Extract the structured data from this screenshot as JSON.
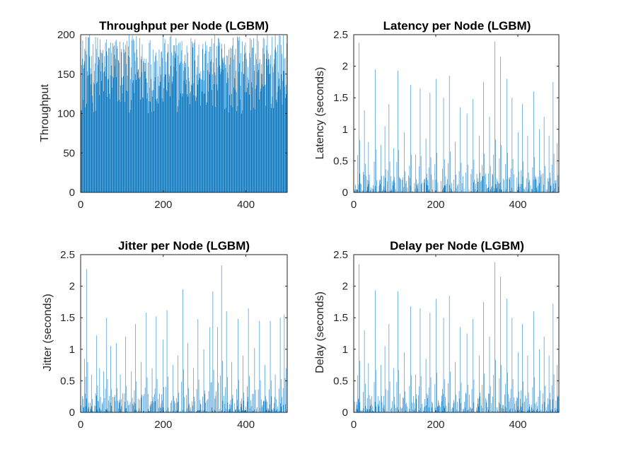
{
  "window": {
    "background": "#ffffff"
  },
  "series_color": "#0072BD",
  "chart_data": [
    {
      "type": "bar",
      "title": "Throughput per Node (LGBM)",
      "xlabel": "",
      "ylabel": "Throughput",
      "xlim": [
        0,
        500
      ],
      "ylim": [
        0,
        200
      ],
      "xticks": [
        "0",
        "200",
        "400"
      ],
      "yticks": [
        "0",
        "50",
        "100",
        "150",
        "200"
      ],
      "x_count": 500,
      "value_profile": {
        "floor": 100,
        "typical_min": 110,
        "max": 200
      },
      "values_note": "500 per-node values, mostly between 100 and 200, dense bars"
    },
    {
      "type": "bar",
      "title": "Latency per Node (LGBM)",
      "xlabel": "",
      "ylabel": "Latency (seconds)",
      "xlim": [
        0,
        500
      ],
      "ylim": [
        0,
        2.5
      ],
      "xticks": [
        "0",
        "200",
        "400"
      ],
      "yticks": [
        "0",
        "0.5",
        "1",
        "1.5",
        "2",
        "2.5"
      ],
      "x_count": 500,
      "peaks": [
        {
          "x": 12,
          "y": 2.37
        },
        {
          "x": 25,
          "y": 1.3
        },
        {
          "x": 35,
          "y": 0.8
        },
        {
          "x": 52,
          "y": 1.95
        },
        {
          "x": 65,
          "y": 0.75
        },
        {
          "x": 75,
          "y": 1.05
        },
        {
          "x": 85,
          "y": 1.4
        },
        {
          "x": 96,
          "y": 0.7
        },
        {
          "x": 107,
          "y": 1.93
        },
        {
          "x": 122,
          "y": 0.95
        },
        {
          "x": 138,
          "y": 1.7
        },
        {
          "x": 150,
          "y": 0.6
        },
        {
          "x": 161,
          "y": 1.65
        },
        {
          "x": 175,
          "y": 0.85
        },
        {
          "x": 185,
          "y": 1.58
        },
        {
          "x": 200,
          "y": 1.8
        },
        {
          "x": 218,
          "y": 1.5
        },
        {
          "x": 232,
          "y": 1.85
        },
        {
          "x": 246,
          "y": 0.8
        },
        {
          "x": 259,
          "y": 1.35
        },
        {
          "x": 275,
          "y": 1.25
        },
        {
          "x": 290,
          "y": 1.48
        },
        {
          "x": 305,
          "y": 0.9
        },
        {
          "x": 315,
          "y": 1.75
        },
        {
          "x": 330,
          "y": 1.2
        },
        {
          "x": 343,
          "y": 2.39
        },
        {
          "x": 357,
          "y": 2.15
        },
        {
          "x": 372,
          "y": 1.8
        },
        {
          "x": 385,
          "y": 1.5
        },
        {
          "x": 400,
          "y": 0.95
        },
        {
          "x": 410,
          "y": 1.4
        },
        {
          "x": 423,
          "y": 0.9
        },
        {
          "x": 438,
          "y": 1.6
        },
        {
          "x": 452,
          "y": 1.0
        },
        {
          "x": 463,
          "y": 1.2
        },
        {
          "x": 475,
          "y": 0.9
        },
        {
          "x": 485,
          "y": 1.75
        },
        {
          "x": 495,
          "y": 0.78
        }
      ],
      "baseline_range": [
        0,
        0.3
      ]
    },
    {
      "type": "bar",
      "title": "Jitter per Node (LGBM)",
      "xlabel": "",
      "ylabel": "Jitter (seconds)",
      "xlim": [
        0,
        500
      ],
      "ylim": [
        0,
        2.5
      ],
      "xticks": [
        "0",
        "200",
        "400"
      ],
      "yticks": [
        "0",
        "0.5",
        "1",
        "1.5",
        "2",
        "2.5"
      ],
      "x_count": 500,
      "peaks": [
        {
          "x": 8,
          "y": 0.85
        },
        {
          "x": 14,
          "y": 2.27
        },
        {
          "x": 25,
          "y": 0.6
        },
        {
          "x": 38,
          "y": 1.22
        },
        {
          "x": 45,
          "y": 0.7
        },
        {
          "x": 55,
          "y": 0.65
        },
        {
          "x": 62,
          "y": 1.5
        },
        {
          "x": 72,
          "y": 1.05
        },
        {
          "x": 85,
          "y": 1.1
        },
        {
          "x": 95,
          "y": 0.6
        },
        {
          "x": 108,
          "y": 1.2
        },
        {
          "x": 122,
          "y": 0.65
        },
        {
          "x": 132,
          "y": 1.4
        },
        {
          "x": 145,
          "y": 0.8
        },
        {
          "x": 158,
          "y": 1.58
        },
        {
          "x": 172,
          "y": 0.7
        },
        {
          "x": 182,
          "y": 1.52
        },
        {
          "x": 198,
          "y": 1.15
        },
        {
          "x": 208,
          "y": 1.62
        },
        {
          "x": 222,
          "y": 0.75
        },
        {
          "x": 234,
          "y": 0.9
        },
        {
          "x": 246,
          "y": 1.95
        },
        {
          "x": 258,
          "y": 1.1
        },
        {
          "x": 272,
          "y": 0.7
        },
        {
          "x": 283,
          "y": 1.48
        },
        {
          "x": 297,
          "y": 1.0
        },
        {
          "x": 312,
          "y": 1.35
        },
        {
          "x": 319,
          "y": 1.92
        },
        {
          "x": 330,
          "y": 1.35
        },
        {
          "x": 340,
          "y": 2.33
        },
        {
          "x": 352,
          "y": 1.6
        },
        {
          "x": 365,
          "y": 0.8
        },
        {
          "x": 380,
          "y": 1.48
        },
        {
          "x": 392,
          "y": 0.9
        },
        {
          "x": 405,
          "y": 1.65
        },
        {
          "x": 420,
          "y": 1.02
        },
        {
          "x": 432,
          "y": 1.45
        },
        {
          "x": 445,
          "y": 0.75
        },
        {
          "x": 458,
          "y": 1.45
        },
        {
          "x": 470,
          "y": 0.6
        },
        {
          "x": 482,
          "y": 1.5
        },
        {
          "x": 492,
          "y": 1.55
        },
        {
          "x": 497,
          "y": 0.7
        }
      ],
      "baseline_range": [
        0,
        0.3
      ]
    },
    {
      "type": "bar",
      "title": "Delay per Node (LGBM)",
      "xlabel": "",
      "ylabel": "Delay (seconds)",
      "xlim": [
        0,
        500
      ],
      "ylim": [
        0,
        2.5
      ],
      "xticks": [
        "0",
        "200",
        "400"
      ],
      "yticks": [
        "0",
        "0.5",
        "1",
        "1.5",
        "2",
        "2.5"
      ],
      "x_count": 500,
      "peaks": [
        {
          "x": 12,
          "y": 2.35
        },
        {
          "x": 25,
          "y": 1.3
        },
        {
          "x": 35,
          "y": 0.78
        },
        {
          "x": 52,
          "y": 1.93
        },
        {
          "x": 65,
          "y": 0.75
        },
        {
          "x": 75,
          "y": 1.05
        },
        {
          "x": 85,
          "y": 1.4
        },
        {
          "x": 96,
          "y": 0.7
        },
        {
          "x": 107,
          "y": 1.92
        },
        {
          "x": 122,
          "y": 0.95
        },
        {
          "x": 138,
          "y": 1.68
        },
        {
          "x": 150,
          "y": 0.6
        },
        {
          "x": 161,
          "y": 1.65
        },
        {
          "x": 175,
          "y": 0.85
        },
        {
          "x": 185,
          "y": 1.58
        },
        {
          "x": 200,
          "y": 1.8
        },
        {
          "x": 218,
          "y": 1.5
        },
        {
          "x": 232,
          "y": 1.85
        },
        {
          "x": 246,
          "y": 0.8
        },
        {
          "x": 259,
          "y": 1.35
        },
        {
          "x": 275,
          "y": 1.25
        },
        {
          "x": 290,
          "y": 1.48
        },
        {
          "x": 305,
          "y": 0.9
        },
        {
          "x": 315,
          "y": 1.75
        },
        {
          "x": 330,
          "y": 1.2
        },
        {
          "x": 343,
          "y": 2.38
        },
        {
          "x": 357,
          "y": 2.15
        },
        {
          "x": 372,
          "y": 1.8
        },
        {
          "x": 385,
          "y": 1.5
        },
        {
          "x": 400,
          "y": 0.95
        },
        {
          "x": 410,
          "y": 1.4
        },
        {
          "x": 423,
          "y": 0.9
        },
        {
          "x": 438,
          "y": 1.6
        },
        {
          "x": 452,
          "y": 1.0
        },
        {
          "x": 463,
          "y": 1.2
        },
        {
          "x": 475,
          "y": 0.9
        },
        {
          "x": 485,
          "y": 1.72
        },
        {
          "x": 495,
          "y": 0.75
        }
      ],
      "baseline_range": [
        0,
        0.3
      ]
    }
  ]
}
